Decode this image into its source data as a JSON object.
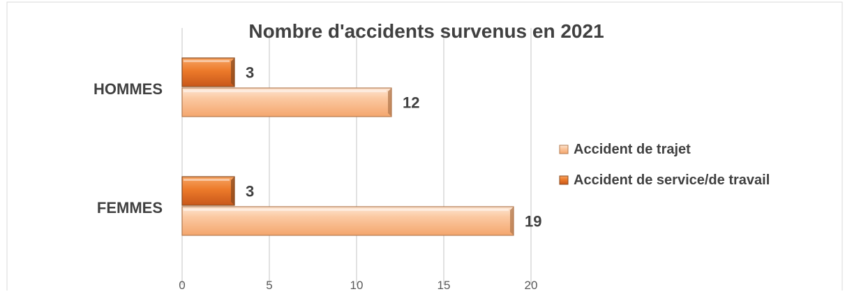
{
  "chart_data": {
    "type": "bar",
    "orientation": "horizontal",
    "title": "Nombre d'accidents survenus en 2021",
    "categories": [
      "HOMMES",
      "FEMMES"
    ],
    "series": [
      {
        "name": "Accident de trajet",
        "values": [
          12,
          19
        ],
        "color": "#f8b98b"
      },
      {
        "name": "Accident de service/de travail",
        "values": [
          3,
          3
        ],
        "color": "#e8731f"
      }
    ],
    "xlim": [
      0,
      20
    ],
    "xticks": [
      0,
      5,
      10,
      15,
      20
    ],
    "grid": true,
    "legend_position": "right",
    "xlabel": "",
    "ylabel": ""
  }
}
